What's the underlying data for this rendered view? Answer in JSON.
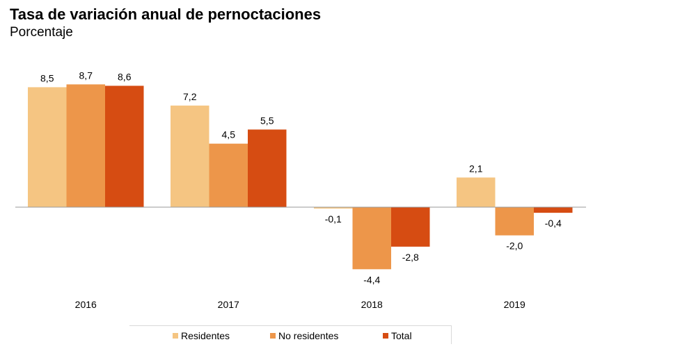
{
  "chart_data": {
    "type": "bar",
    "title": "Tasa de variación anual de pernoctaciones",
    "subtitle": "Porcentaje",
    "categories": [
      "2016",
      "2017",
      "2018",
      "2019"
    ],
    "series": [
      {
        "name": "Residentes",
        "values": [
          8.5,
          7.2,
          -0.1,
          2.1
        ],
        "labels": [
          "8,5",
          "7,2",
          "-0,1",
          "2,1"
        ],
        "color": "#f5c582"
      },
      {
        "name": "No residentes",
        "values": [
          8.7,
          4.5,
          -4.4,
          -2.0
        ],
        "labels": [
          "8,7",
          "4,5",
          "-4,4",
          "-2,0"
        ],
        "color": "#ed964a"
      },
      {
        "name": "Total",
        "values": [
          8.6,
          5.5,
          -2.8,
          -0.4
        ],
        "labels": [
          "8,6",
          "5,5",
          "-2,8",
          "-0,4"
        ],
        "color": "#d64c12"
      }
    ],
    "legend_position": "bottom",
    "grid": false
  }
}
